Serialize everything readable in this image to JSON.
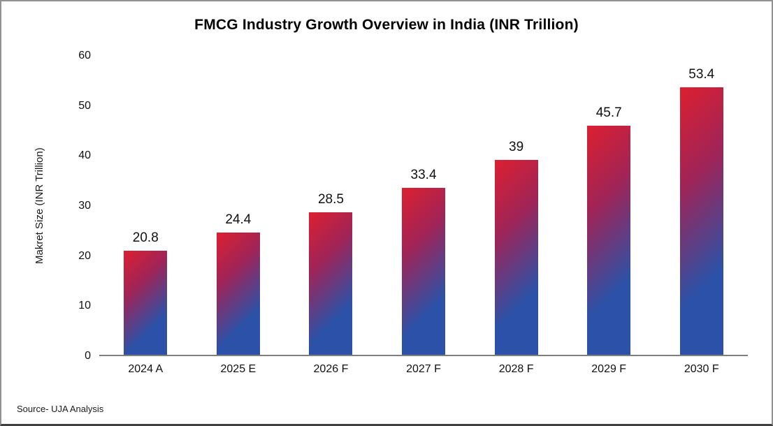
{
  "title": "FMCG Industry Growth Overview in India (INR Trillion)",
  "source": "Source- UJA Analysis",
  "chart_data": {
    "type": "bar",
    "title": "FMCG Industry Growth Overview in India (INR Trillion)",
    "categories": [
      "2024 A",
      "2025 E",
      "2026 F",
      "2027 F",
      "2028 F",
      "2029 F",
      "2030 F"
    ],
    "values": [
      20.8,
      24.4,
      28.5,
      33.4,
      39,
      45.7,
      53.4
    ],
    "xlabel": "",
    "ylabel": "Makret Size (INR Trillion)",
    "ylim": [
      0,
      60
    ],
    "yticks": [
      0,
      10,
      20,
      30,
      40,
      50,
      60
    ],
    "grid": false,
    "legend": false,
    "annotation": "Source- UJA Analysis",
    "colors": {
      "bar_gradient_top": "#DD1F30",
      "bar_gradient_mid": "#A02457",
      "bar_gradient_bottom": "#2B52A8",
      "axis_line": "#7F7F7F",
      "text": "#111111",
      "background": "#FFFFFF",
      "frame_border": "#919191"
    }
  }
}
